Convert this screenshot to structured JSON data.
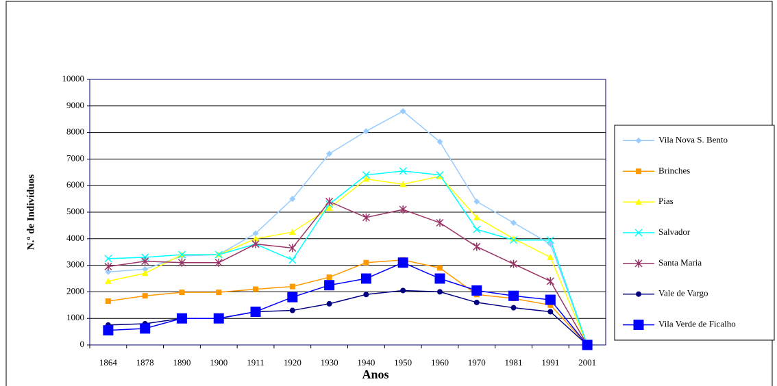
{
  "chart_data": {
    "type": "line",
    "categories": [
      "1864",
      "1878",
      "1890",
      "1900",
      "1911",
      "1920",
      "1930",
      "1940",
      "1950",
      "1960",
      "1970",
      "1981",
      "1991",
      "2001"
    ],
    "x_label": "Anos",
    "y_label": "N.º de Indivíduos",
    "ylim": [
      0,
      10000
    ],
    "yticks": [
      0,
      1000,
      2000,
      3000,
      4000,
      5000,
      6000,
      7000,
      8000,
      9000,
      10000
    ],
    "grid": true,
    "legend": "right",
    "series": [
      {
        "name": "Vila Nova S. Bento",
        "color": "#99ccff",
        "marker": "diamond",
        "values": [
          2750,
          2850,
          3350,
          3400,
          4200,
          5500,
          7200,
          8050,
          8800,
          7650,
          5400,
          4600,
          3800,
          0
        ]
      },
      {
        "name": "Brinches",
        "color": "#ff9900",
        "marker": "square",
        "values": [
          1650,
          1850,
          1980,
          1980,
          2100,
          2200,
          2550,
          3100,
          3200,
          2900,
          1900,
          1750,
          1500,
          0
        ]
      },
      {
        "name": "Pias",
        "color": "#ffff00",
        "marker": "triangle",
        "values": [
          2400,
          2700,
          3400,
          3400,
          4000,
          4250,
          5150,
          6250,
          6050,
          6350,
          4800,
          4000,
          3300,
          0
        ]
      },
      {
        "name": "Salvador",
        "color": "#00ffff",
        "marker": "cross",
        "values": [
          3250,
          3300,
          3400,
          3400,
          3800,
          3200,
          5300,
          6400,
          6550,
          6400,
          4350,
          3950,
          3950,
          0
        ]
      },
      {
        "name": "Santa Maria",
        "color": "#993366",
        "marker": "star",
        "values": [
          2950,
          3150,
          3100,
          3100,
          3800,
          3650,
          5400,
          4800,
          5100,
          4600,
          3700,
          3050,
          2400,
          0
        ]
      },
      {
        "name": "Vale de Vargo",
        "color": "#000080",
        "marker": "circle",
        "values": [
          750,
          800,
          1000,
          1000,
          1250,
          1300,
          1550,
          1900,
          2050,
          2000,
          1600,
          1400,
          1250,
          0
        ]
      },
      {
        "name": "Vila Verde de Ficalho",
        "color": "#0000ff",
        "marker": "bigsquare",
        "values": [
          550,
          620,
          1000,
          1000,
          1250,
          1800,
          2250,
          2500,
          3100,
          2500,
          2050,
          1850,
          1700,
          0
        ]
      }
    ]
  }
}
